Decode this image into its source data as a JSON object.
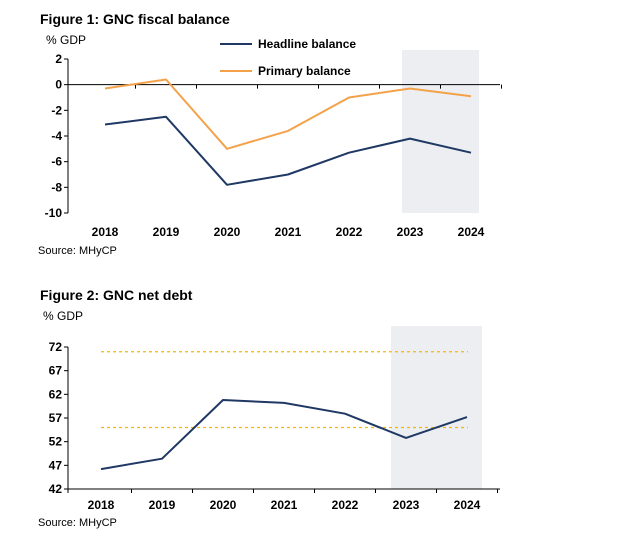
{
  "chart_data": [
    {
      "type": "line",
      "title": "Figure 1: GNC fiscal balance",
      "ylabel": "% GDP",
      "source": "Source: MHyCP",
      "categories": [
        "2018",
        "2019",
        "2020",
        "2021",
        "2022",
        "2023",
        "2024"
      ],
      "ylim": [
        -10,
        2
      ],
      "yticks": [
        "2",
        "0",
        "-2",
        "-4",
        "-6",
        "-8",
        "-10"
      ],
      "ytick_values": [
        2,
        0,
        -2,
        -4,
        -6,
        -8,
        -10
      ],
      "shaded_from": "2023",
      "series": [
        {
          "name": "Headline balance",
          "color": "#1f3864",
          "values": [
            -3.1,
            -2.5,
            -7.8,
            -7.0,
            -5.3,
            -4.2,
            -5.3
          ]
        },
        {
          "name": "Primary balance",
          "color": "#f4a24a",
          "values": [
            -0.3,
            0.4,
            -5.0,
            -3.6,
            -1.0,
            -0.3,
            -0.9
          ]
        }
      ],
      "legend": "top-center",
      "zero_line": true
    },
    {
      "type": "line",
      "title": "Figure 2: GNC net debt",
      "ylabel": "% GDP",
      "source": "Source: MHyCP",
      "categories": [
        "2018",
        "2019",
        "2020",
        "2021",
        "2022",
        "2023",
        "2024"
      ],
      "ylim": [
        42,
        72
      ],
      "yticks": [
        "72",
        "67",
        "62",
        "57",
        "52",
        "47",
        "42"
      ],
      "ytick_values": [
        72,
        67,
        62,
        57,
        52,
        47,
        42
      ],
      "shaded_from": "2023",
      "series": [
        {
          "name": "Net debt",
          "color": "#1f3864",
          "values": [
            46.2,
            48.4,
            60.8,
            60.2,
            57.9,
            52.8,
            57.2
          ]
        }
      ],
      "reference_lines": [
        {
          "value": 71,
          "color": "#f5b800"
        },
        {
          "value": 55,
          "color": "#f5b800"
        }
      ]
    }
  ],
  "colors": {
    "shade": "#eceef2",
    "axis": "#000000"
  }
}
